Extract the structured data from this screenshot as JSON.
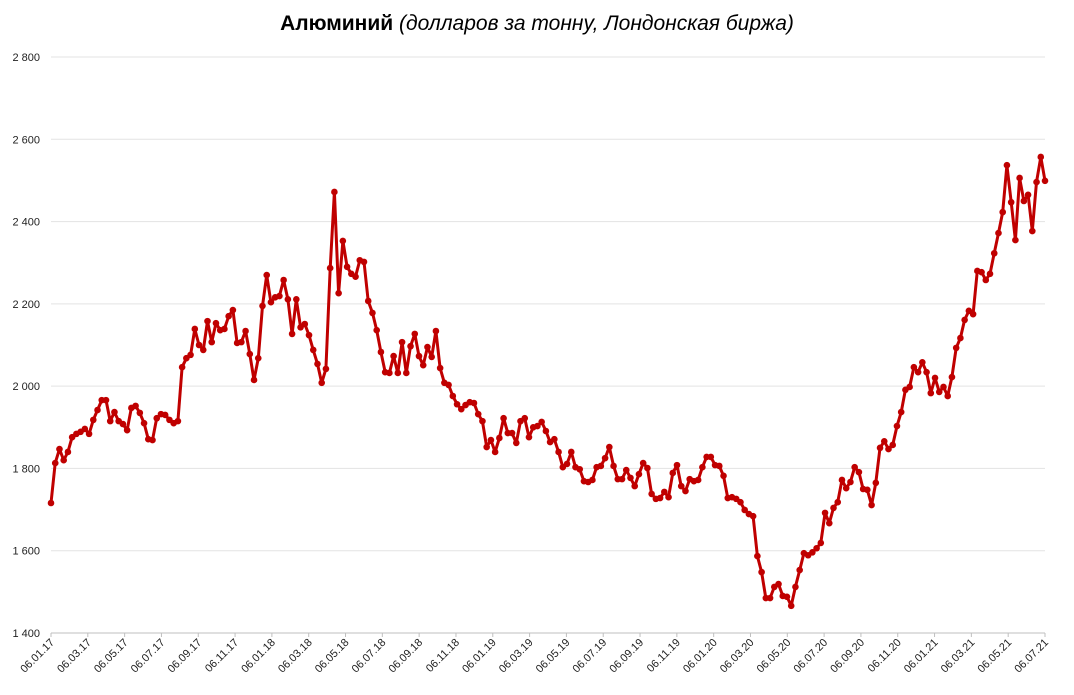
{
  "chart_data": {
    "type": "line",
    "title_bold": "Алюминий",
    "title_rest": "(долларов за тонну, Лондонская биржа)",
    "xlabel": "",
    "ylabel": "",
    "ylim": [
      1400,
      2800
    ],
    "yticks": [
      1400,
      1600,
      1800,
      2000,
      2200,
      2400,
      2600,
      2800
    ],
    "ytick_labels": [
      "1 400",
      "1 600",
      "1 800",
      "2 000",
      "2 200",
      "2 400",
      "2 600",
      "2 800"
    ],
    "grid": true,
    "line_color": "#C00000",
    "xtick_labels": [
      "06.01.17",
      "06.03.17",
      "06.05.17",
      "06.07.17",
      "06.09.17",
      "06.11.17",
      "06.01.18",
      "06.03.18",
      "06.05.18",
      "06.07.18",
      "06.09.18",
      "06.11.18",
      "06.01.19",
      "06.03.19",
      "06.05.19",
      "06.07.19",
      "06.09.19",
      "06.11.19",
      "06.01.20",
      "06.03.20",
      "06.05.20",
      "06.07.20",
      "06.09.20",
      "06.11.20",
      "06.01.21",
      "06.03.21",
      "06.05.21",
      "06.07.21"
    ],
    "series": [
      {
        "name": "Алюминий",
        "values": [
          1716,
          1813,
          1847,
          1820,
          1840,
          1876,
          1884,
          1889,
          1896,
          1884,
          1918,
          1942,
          1966,
          1966,
          1915,
          1937,
          1915,
          1908,
          1893,
          1947,
          1952,
          1935,
          1910,
          1871,
          1869,
          1922,
          1932,
          1930,
          1918,
          1910,
          1915,
          2046,
          2068,
          2076,
          2139,
          2100,
          2088,
          2158,
          2107,
          2153,
          2136,
          2139,
          2170,
          2185,
          2105,
          2107,
          2134,
          2078,
          2015,
          2068,
          2195,
          2270,
          2204,
          2216,
          2219,
          2258,
          2211,
          2127,
          2211,
          2143,
          2151,
          2124,
          2088,
          2054,
          2008,
          2042,
          2287,
          2472,
          2226,
          2353,
          2290,
          2273,
          2266,
          2306,
          2302,
          2207,
          2178,
          2136,
          2083,
          2034,
          2032,
          2073,
          2032,
          2107,
          2032,
          2097,
          2127,
          2073,
          2051,
          2095,
          2071,
          2134,
          2044,
          2008,
          2003,
          1976,
          1956,
          1944,
          1954,
          1961,
          1959,
          1932,
          1915,
          1852,
          1869,
          1840,
          1874,
          1922,
          1886,
          1886,
          1862,
          1915,
          1922,
          1876,
          1900,
          1903,
          1913,
          1891,
          1864,
          1871,
          1840,
          1803,
          1811,
          1840,
          1803,
          1798,
          1769,
          1767,
          1772,
          1803,
          1806,
          1825,
          1852,
          1806,
          1774,
          1774,
          1796,
          1777,
          1757,
          1786,
          1813,
          1801,
          1738,
          1726,
          1728,
          1743,
          1730,
          1789,
          1808,
          1757,
          1745,
          1774,
          1769,
          1772,
          1803,
          1828,
          1828,
          1808,
          1806,
          1782,
          1728,
          1730,
          1726,
          1718,
          1699,
          1689,
          1684,
          1587,
          1548,
          1485,
          1485,
          1512,
          1519,
          1490,
          1488,
          1466,
          1512,
          1553,
          1594,
          1589,
          1596,
          1606,
          1619,
          1692,
          1667,
          1704,
          1718,
          1772,
          1752,
          1767,
          1803,
          1791,
          1750,
          1748,
          1711,
          1765,
          1850,
          1866,
          1847,
          1857,
          1903,
          1937,
          1991,
          1998,
          2046,
          2034,
          2058,
          2034,
          1983,
          2020,
          1986,
          1998,
          1976,
          2022,
          2093,
          2117,
          2161,
          2183,
          2175,
          2280,
          2277,
          2258,
          2273,
          2323,
          2372,
          2423,
          2537,
          2447,
          2355,
          2506,
          2450,
          2465,
          2377,
          2496,
          2557,
          2499
        ]
      }
    ]
  }
}
